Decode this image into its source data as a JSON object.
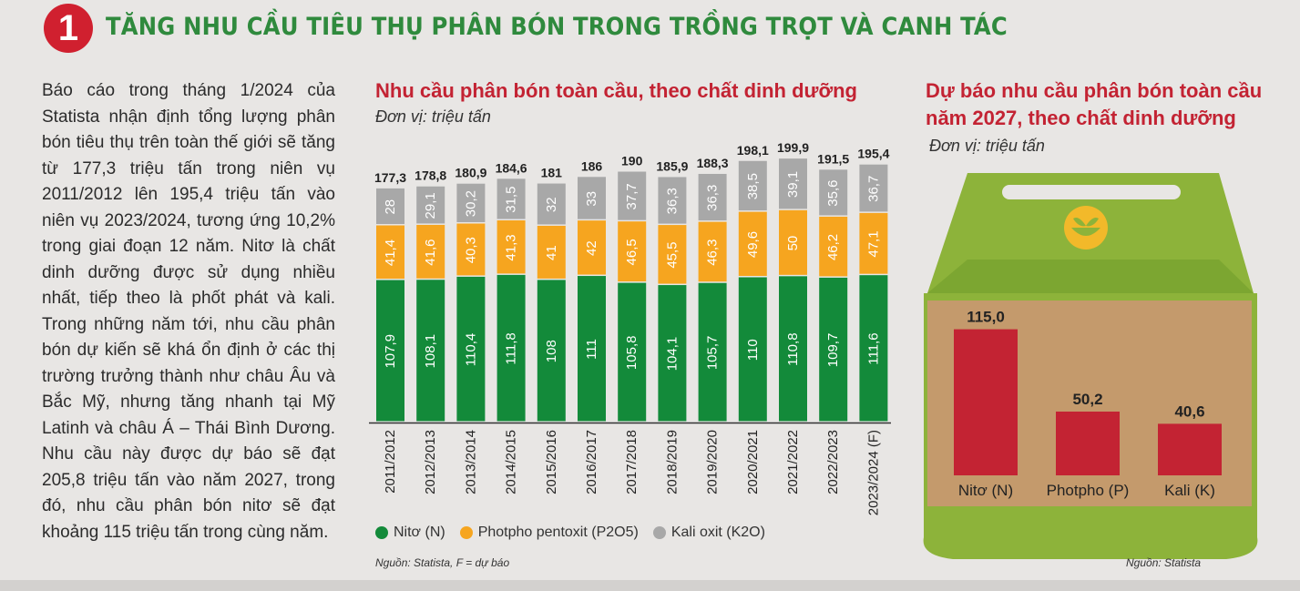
{
  "header": {
    "badge": "1",
    "title": "TĂNG NHU CẦU TIÊU THỤ PHÂN BÓN TRONG TRỒNG TRỌT VÀ CANH TÁC"
  },
  "body_text": "Báo cáo trong tháng 1/2024 của Statista nhận định tổng lượng phân bón tiêu thụ trên toàn thế giới sẽ tăng từ 177,3 triệu tấn trong niên vụ 2011/2012 lên 195,4 triệu tấn vào niên vụ 2023/2024, tương ứng 10,2% trong giai đoạn 12 năm. Nitơ là chất dinh dưỡng được sử dụng nhiều nhất, tiếp theo là phốt phát và kali. Trong những năm tới, nhu cầu phân bón dự kiến sẽ khá ổn định ở các thị trường trưởng thành như châu Âu và Bắc Mỹ, nhưng tăng nhanh tại Mỹ Latinh và châu Á – Thái Bình Dương. Nhu cầu này được dự báo sẽ đạt 205,8 triệu tấn vào năm 2027, trong đó, nhu cầu phân bón nitơ sẽ đạt khoảng 115 triệu tấn trong cùng năm.",
  "colors": {
    "nitrogen": "#138a3a",
    "phosphate": "#f6a51f",
    "potash": "#a8a8a8",
    "red": "#c32333",
    "box_green": "#8db33a",
    "box_brown": "#c49a6c"
  },
  "chart_data": [
    {
      "type": "bar",
      "stacked": true,
      "title": "Nhu cầu phân bón toàn cầu, theo chất dinh dưỡng",
      "unit": "Đơn vị: triệu tấn",
      "categories": [
        "2011/2012",
        "2012/2013",
        "2013/2014",
        "2014/2015",
        "2015/2016",
        "2016/2017",
        "2017/2018",
        "2018/2019",
        "2019/2020",
        "2020/2021",
        "2021/2022",
        "2022/2023",
        "2023/2024 (F)"
      ],
      "series": [
        {
          "name": "Nitơ (N)",
          "values": [
            107.9,
            108.1,
            110.4,
            111.8,
            108,
            111,
            105.8,
            104.1,
            105.7,
            110,
            110.8,
            109.7,
            111.6
          ],
          "labels": [
            "107,9",
            "108,1",
            "110,4",
            "111,8",
            "108",
            "111",
            "105,8",
            "104,1",
            "105,7",
            "110",
            "110,8",
            "109,7",
            "111,6"
          ]
        },
        {
          "name": "Photpho pentoxit (P2O5)",
          "values": [
            41.4,
            41.6,
            40.3,
            41.3,
            41,
            42,
            46.5,
            45.5,
            46.3,
            49.6,
            50,
            46.2,
            47.1
          ],
          "labels": [
            "41,4",
            "41,6",
            "40,3",
            "41,3",
            "41",
            "42",
            "46,5",
            "45,5",
            "46,3",
            "49,6",
            "50",
            "46,2",
            "47,1"
          ]
        },
        {
          "name": "Kali oxit (K2O)",
          "values": [
            28,
            29.1,
            30.2,
            31.5,
            32,
            33,
            37.7,
            36.3,
            36.3,
            38.5,
            39.1,
            35.6,
            36.7
          ],
          "labels": [
            "28",
            "29,1",
            "30,2",
            "31,5",
            "32",
            "33",
            "37,7",
            "36,3",
            "36,3",
            "38,5",
            "39,1",
            "35,6",
            "36,7"
          ]
        }
      ],
      "totals": [
        177.3,
        178.8,
        180.9,
        184.6,
        181,
        186,
        190,
        185.9,
        188.3,
        198.1,
        199.9,
        191.5,
        195.4
      ],
      "total_labels": [
        "177,3",
        "178,8",
        "180,9",
        "184,6",
        "181",
        "186",
        "190",
        "185,9",
        "188,3",
        "198,1",
        "199,9",
        "191,5",
        "195,4"
      ],
      "legend": [
        "Nitơ (N)",
        "Photpho pentoxit (P2O5)",
        "Kali oxit (K2O)"
      ],
      "legend_position": "bottom",
      "source": "Nguồn: Statista, F = dự báo"
    },
    {
      "type": "bar",
      "title": "Dự báo nhu cầu phân bón toàn cầu năm 2027, theo chất dinh dưỡng",
      "unit": "Đơn vị: triệu tấn",
      "categories": [
        "Nitơ (N)",
        "Photpho (P)",
        "Kali (K)"
      ],
      "values": [
        115.0,
        50.2,
        40.6
      ],
      "labels": [
        "115,0",
        "50,2",
        "40,6"
      ],
      "source": "Nguồn: Statista"
    }
  ]
}
